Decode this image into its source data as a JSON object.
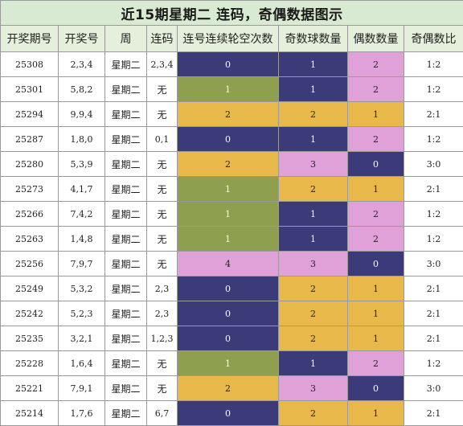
{
  "title": "近15期星期二 连码，奇偶数据图示",
  "headers": [
    "开奖期号",
    "开奖号",
    "周",
    "连码",
    "连号连续轮空次数",
    "奇数球数量",
    "偶数数量",
    "奇偶数比"
  ],
  "colors": {
    "navy": "#3b3b7a",
    "green": "#8ea04f",
    "yellow": "#e8b94a",
    "pink": "#e0a0d8"
  },
  "rows": [
    {
      "period": "25308",
      "numbers": "2,3,4",
      "weekday": "星期二",
      "consec": "2,3,4",
      "gap": "0",
      "odd": "1",
      "even": "2",
      "ratio": "1:2",
      "gap_color": "navy",
      "odd_color": "navy",
      "even_color": "pink"
    },
    {
      "period": "25301",
      "numbers": "5,8,2",
      "weekday": "星期二",
      "consec": "无",
      "gap": "1",
      "odd": "1",
      "even": "2",
      "ratio": "1:2",
      "gap_color": "green",
      "odd_color": "navy",
      "even_color": "pink"
    },
    {
      "period": "25294",
      "numbers": "9,9,4",
      "weekday": "星期二",
      "consec": "无",
      "gap": "2",
      "odd": "2",
      "even": "1",
      "ratio": "2:1",
      "gap_color": "yellow",
      "odd_color": "yellow",
      "even_color": "yellow"
    },
    {
      "period": "25287",
      "numbers": "1,8,0",
      "weekday": "星期二",
      "consec": "0,1",
      "gap": "0",
      "odd": "1",
      "even": "2",
      "ratio": "1:2",
      "gap_color": "navy",
      "odd_color": "navy",
      "even_color": "pink"
    },
    {
      "period": "25280",
      "numbers": "5,3,9",
      "weekday": "星期二",
      "consec": "无",
      "gap": "2",
      "odd": "3",
      "even": "0",
      "ratio": "3:0",
      "gap_color": "yellow",
      "odd_color": "pink",
      "even_color": "navy"
    },
    {
      "period": "25273",
      "numbers": "4,1,7",
      "weekday": "星期二",
      "consec": "无",
      "gap": "1",
      "odd": "2",
      "even": "1",
      "ratio": "2:1",
      "gap_color": "green",
      "odd_color": "yellow",
      "even_color": "yellow"
    },
    {
      "period": "25266",
      "numbers": "7,4,2",
      "weekday": "星期二",
      "consec": "无",
      "gap": "1",
      "odd": "1",
      "even": "2",
      "ratio": "1:2",
      "gap_color": "green",
      "odd_color": "navy",
      "even_color": "pink"
    },
    {
      "period": "25263",
      "numbers": "1,4,8",
      "weekday": "星期二",
      "consec": "无",
      "gap": "1",
      "odd": "1",
      "even": "2",
      "ratio": "1:2",
      "gap_color": "green",
      "odd_color": "navy",
      "even_color": "pink"
    },
    {
      "period": "25256",
      "numbers": "7,9,7",
      "weekday": "星期二",
      "consec": "无",
      "gap": "4",
      "odd": "3",
      "even": "0",
      "ratio": "3:0",
      "gap_color": "pink",
      "odd_color": "pink",
      "even_color": "navy"
    },
    {
      "period": "25249",
      "numbers": "5,3,2",
      "weekday": "星期二",
      "consec": "2,3",
      "gap": "0",
      "odd": "2",
      "even": "1",
      "ratio": "2:1",
      "gap_color": "navy",
      "odd_color": "yellow",
      "even_color": "yellow"
    },
    {
      "period": "25242",
      "numbers": "5,2,3",
      "weekday": "星期二",
      "consec": "2,3",
      "gap": "0",
      "odd": "2",
      "even": "1",
      "ratio": "2:1",
      "gap_color": "navy",
      "odd_color": "yellow",
      "even_color": "yellow"
    },
    {
      "period": "25235",
      "numbers": "3,2,1",
      "weekday": "星期二",
      "consec": "1,2,3",
      "gap": "0",
      "odd": "2",
      "even": "1",
      "ratio": "2:1",
      "gap_color": "navy",
      "odd_color": "yellow",
      "even_color": "yellow"
    },
    {
      "period": "25228",
      "numbers": "1,6,4",
      "weekday": "星期二",
      "consec": "无",
      "gap": "1",
      "odd": "1",
      "even": "2",
      "ratio": "1:2",
      "gap_color": "green",
      "odd_color": "navy",
      "even_color": "pink"
    },
    {
      "period": "25221",
      "numbers": "7,9,1",
      "weekday": "星期二",
      "consec": "无",
      "gap": "2",
      "odd": "3",
      "even": "0",
      "ratio": "3:0",
      "gap_color": "yellow",
      "odd_color": "pink",
      "even_color": "navy"
    },
    {
      "period": "25214",
      "numbers": "1,7,6",
      "weekday": "星期二",
      "consec": "6,7",
      "gap": "0",
      "odd": "2",
      "even": "1",
      "ratio": "2:1",
      "gap_color": "navy",
      "odd_color": "yellow",
      "even_color": "yellow"
    }
  ]
}
